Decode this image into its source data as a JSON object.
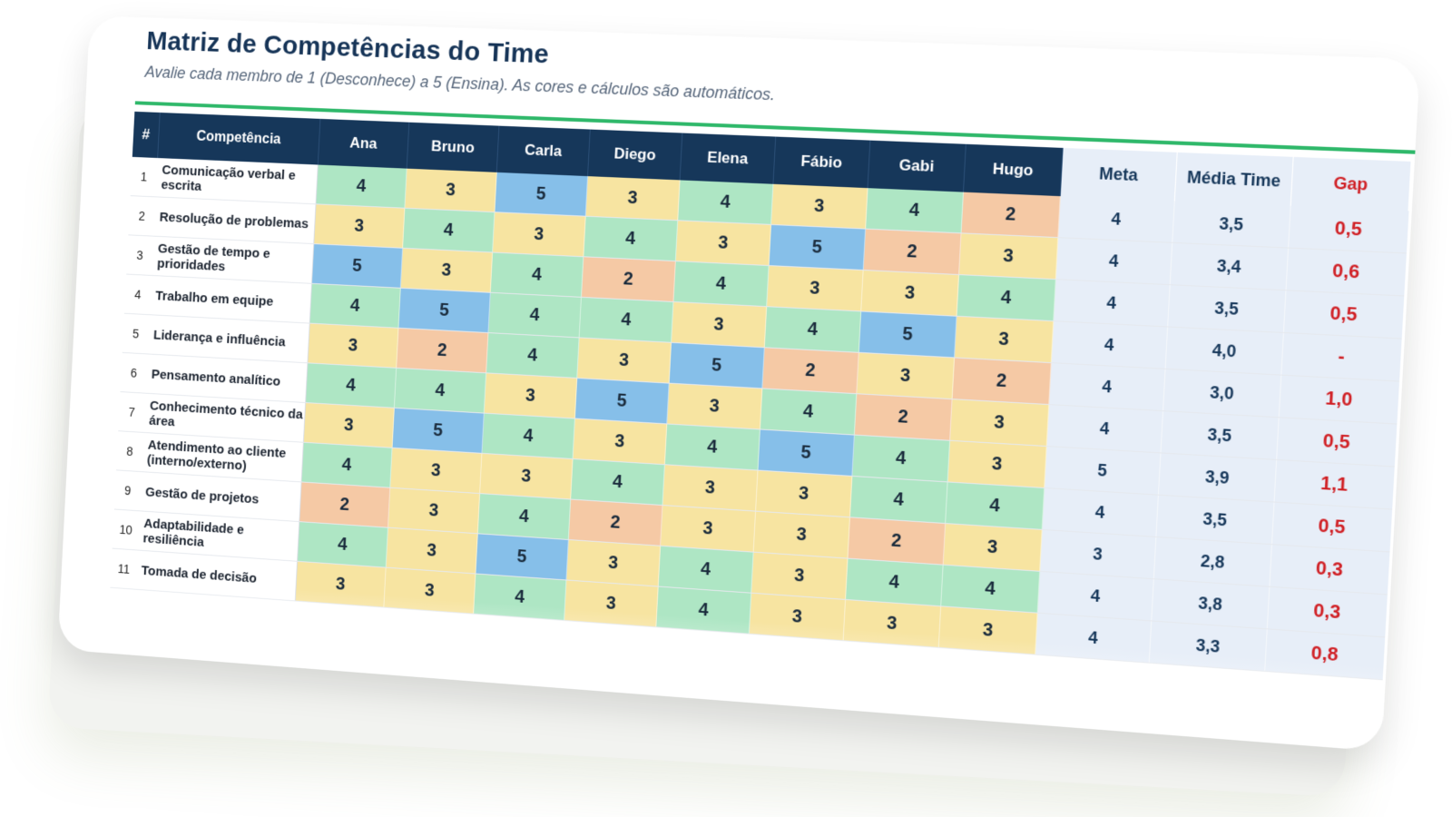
{
  "header": {
    "title": "Matriz de Competências do Time",
    "subtitle": "Avalie cada membro de 1 (Desconhece) a 5 (Ensina). As cores e cálculos são automáticos."
  },
  "table": {
    "columns": {
      "num": "#",
      "competency": "Competência",
      "members": [
        "Ana",
        "Bruno",
        "Carla",
        "Diego",
        "Elena",
        "Fábio",
        "Gabi",
        "Hugo"
      ],
      "meta": "Meta",
      "media": "Média Time",
      "gap": "Gap"
    },
    "rows": [
      {
        "num": "1",
        "competency": "Comunicação verbal e escrita",
        "scores": [
          4,
          3,
          5,
          3,
          4,
          3,
          4,
          2
        ],
        "meta": "4",
        "media": "3,5",
        "gap": "0,5"
      },
      {
        "num": "2",
        "competency": "Resolução de problemas",
        "scores": [
          3,
          4,
          3,
          4,
          3,
          5,
          2,
          3
        ],
        "meta": "4",
        "media": "3,4",
        "gap": "0,6"
      },
      {
        "num": "3",
        "competency": "Gestão de tempo e prioridades",
        "scores": [
          5,
          3,
          4,
          2,
          4,
          3,
          3,
          4
        ],
        "meta": "4",
        "media": "3,5",
        "gap": "0,5"
      },
      {
        "num": "4",
        "competency": "Trabalho em equipe",
        "scores": [
          4,
          5,
          4,
          4,
          3,
          4,
          5,
          3
        ],
        "meta": "4",
        "media": "4,0",
        "gap": "-"
      },
      {
        "num": "5",
        "competency": "Liderança e influência",
        "scores": [
          3,
          2,
          4,
          3,
          5,
          2,
          3,
          2
        ],
        "meta": "4",
        "media": "3,0",
        "gap": "1,0"
      },
      {
        "num": "6",
        "competency": "Pensamento analítico",
        "scores": [
          4,
          4,
          3,
          5,
          3,
          4,
          2,
          3
        ],
        "meta": "4",
        "media": "3,5",
        "gap": "0,5"
      },
      {
        "num": "7",
        "competency": "Conhecimento técnico da área",
        "scores": [
          3,
          5,
          4,
          3,
          4,
          5,
          4,
          3
        ],
        "meta": "5",
        "media": "3,9",
        "gap": "1,1"
      },
      {
        "num": "8",
        "competency": "Atendimento ao cliente (interno/externo)",
        "scores": [
          4,
          3,
          3,
          4,
          3,
          3,
          4,
          4
        ],
        "meta": "4",
        "media": "3,5",
        "gap": "0,5"
      },
      {
        "num": "9",
        "competency": "Gestão de projetos",
        "scores": [
          2,
          3,
          4,
          2,
          3,
          3,
          2,
          3
        ],
        "meta": "3",
        "media": "2,8",
        "gap": "0,3"
      },
      {
        "num": "10",
        "competency": "Adaptabilidade e resiliência",
        "scores": [
          4,
          3,
          5,
          3,
          4,
          3,
          4,
          4
        ],
        "meta": "4",
        "media": "3,8",
        "gap": "0,3"
      },
      {
        "num": "11",
        "competency": "Tomada de decisão",
        "scores": [
          3,
          3,
          4,
          3,
          4,
          3,
          3,
          3
        ],
        "meta": "4",
        "media": "3,3",
        "gap": "0,8"
      }
    ]
  },
  "colors": {
    "score_2": "#f5c9a5",
    "score_3": "#f7e4a1",
    "score_4": "#aee6c4",
    "score_5": "#86bfe9",
    "header_bg": "#16375a",
    "accent_rule": "#2fb86a",
    "gap_text": "#d01f24"
  }
}
